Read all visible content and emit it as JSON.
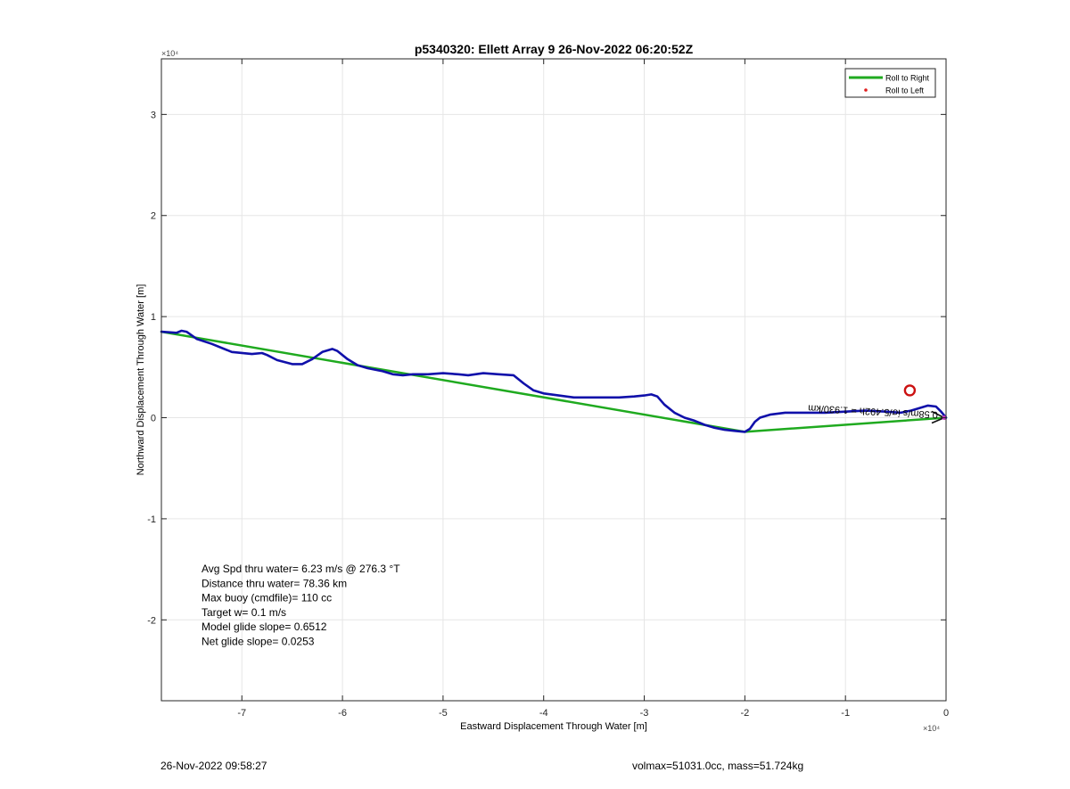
{
  "chart_data": {
    "type": "line",
    "title": "p5340320: Ellett Array 9 26-Nov-2022 06:20:52Z",
    "xlabel": "Eastward Displacement Through Water [m]",
    "ylabel": "Northward Displacement Through Water [m]",
    "xlim": [
      -78000,
      0
    ],
    "ylim": [
      -28000,
      35500
    ],
    "axis_multiplier": "×10⁴",
    "x_ticks": [
      -70000,
      -60000,
      -50000,
      -40000,
      -30000,
      -20000,
      -10000,
      0
    ],
    "x_tick_labels": [
      "-7",
      "-6",
      "-5",
      "-4",
      "-3",
      "-2",
      "-1",
      "0"
    ],
    "y_ticks": [
      -20000,
      -10000,
      0,
      10000,
      20000,
      30000
    ],
    "y_tick_labels": [
      "-2",
      "-1",
      "0",
      "1",
      "2",
      "3"
    ],
    "grid": true,
    "legend_position": "top-right",
    "legend": [
      {
        "label": "Roll to Right",
        "color": "#1faa1f",
        "marker": "line"
      },
      {
        "label": "Roll to Left",
        "color": "#e02020",
        "marker": "dot"
      }
    ],
    "series": [
      {
        "color": "#1faa1f",
        "x": [
          -78000,
          -20000,
          0
        ],
        "y": [
          8500,
          -1400,
          0
        ]
      },
      {
        "color": "#1010aa",
        "x": [
          -78000,
          -76500,
          -76000,
          -75500,
          -74500,
          -73000,
          -71000,
          -69000,
          -68000,
          -67500,
          -66500,
          -65000,
          -64000,
          -63000,
          -62000,
          -61000,
          -60500,
          -59500,
          -58500,
          -57500,
          -56000,
          -55000,
          -54000,
          -53000,
          -51500,
          -50000,
          -48500,
          -47500,
          -46000,
          -44500,
          -43000,
          -42000,
          -41000,
          -40000,
          -38500,
          -37000,
          -35500,
          -34000,
          -32500,
          -31000,
          -30000,
          -29300,
          -28700,
          -28000,
          -27000,
          -26000,
          -25000,
          -24000,
          -23000,
          -22000,
          -21000,
          -20000,
          -19500,
          -19000,
          -18500,
          -17500,
          -16000,
          -14000,
          -12000,
          -10000,
          -8000,
          -6000,
          -4500,
          -3500,
          -2500,
          -1800,
          -1000,
          -500,
          0
        ],
        "y": [
          8500,
          8400,
          8600,
          8500,
          7800,
          7300,
          6500,
          6300,
          6400,
          6200,
          5700,
          5300,
          5300,
          5800,
          6500,
          6800,
          6600,
          5800,
          5200,
          4900,
          4600,
          4300,
          4200,
          4300,
          4300,
          4400,
          4300,
          4200,
          4400,
          4300,
          4200,
          3400,
          2700,
          2400,
          2200,
          2000,
          2000,
          2000,
          2000,
          2100,
          2200,
          2300,
          2100,
          1300,
          500,
          0,
          -300,
          -700,
          -1000,
          -1200,
          -1300,
          -1400,
          -1100,
          -400,
          0,
          300,
          500,
          500,
          500,
          600,
          700,
          600,
          500,
          700,
          1000,
          1200,
          1100,
          600,
          0
        ]
      }
    ],
    "point_markers": [
      {
        "x": -3600,
        "y": 2700,
        "color": "#cc1111"
      }
    ],
    "text_info": [
      "Avg Spd thru water=  6.23 m/s @ 276.3 °T",
      "Distance thru water= 78.36 km",
      "Max buoy (cmdfile)= 110 cc",
      "Target w= 0.1 m/s",
      "Model glide slope= 0.6512",
      "Net glide slope= 0.0253"
    ],
    "rotated_annotation": "0.58m/s ίσ/5.492h = 1.930/km"
  },
  "footer": {
    "left": "26-Nov-2022 09:58:27",
    "right": "volmax=51031.0cc, mass=51.724kg"
  }
}
